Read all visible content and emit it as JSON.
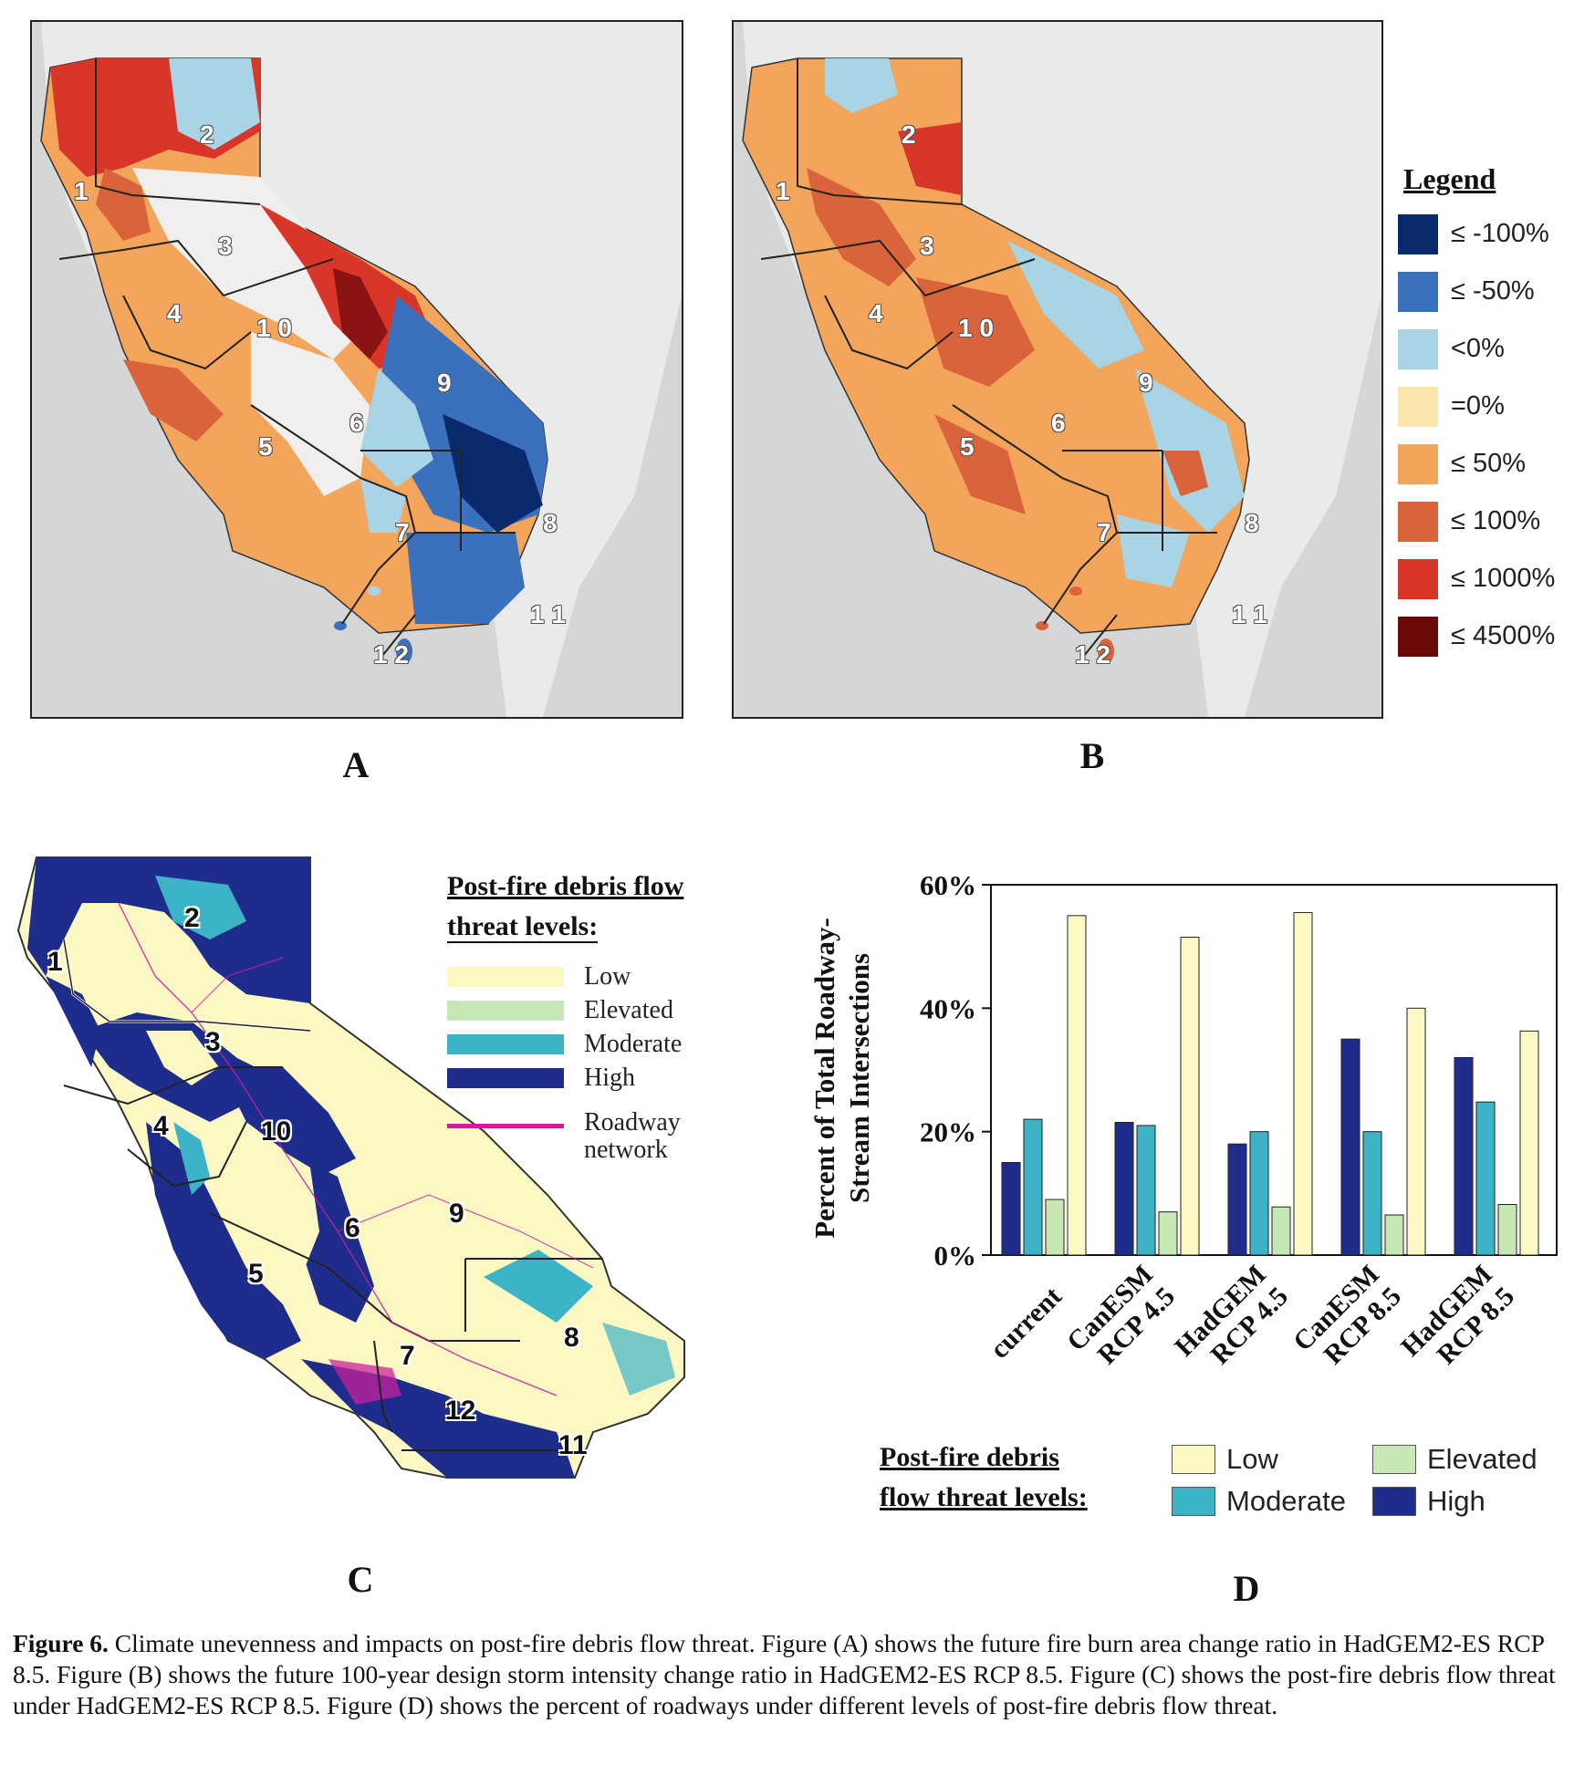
{
  "panel_a": {
    "label": "A",
    "regions": [
      "1",
      "2",
      "3",
      "4",
      "1 0",
      "5",
      "6",
      "7",
      "8",
      "9",
      "1 1",
      "1 2"
    ]
  },
  "panel_b": {
    "label": "B",
    "regions": [
      "1",
      "2",
      "3",
      "4",
      "1 0",
      "5",
      "6",
      "7",
      "8",
      "9",
      "1 1",
      "1 2"
    ]
  },
  "legend_ab": {
    "title": "Legend",
    "items": [
      {
        "label": "≤ -100%",
        "color": "#0b2a6e"
      },
      {
        "label": "≤ -50%",
        "color": "#3b70bd"
      },
      {
        "label": "<0%",
        "color": "#a9d4e6"
      },
      {
        "label": "=0%",
        "color": "#fbe6b0"
      },
      {
        "label": "≤ 50%",
        "color": "#f4a55c"
      },
      {
        "label": "≤ 100%",
        "color": "#d9633a"
      },
      {
        "label": "≤ 1000%",
        "color": "#d9362a"
      },
      {
        "label": "≤ 4500%",
        "color": "#6b0a0a"
      }
    ]
  },
  "panel_c": {
    "label": "C",
    "regions": [
      "1",
      "2",
      "3",
      "4",
      "10",
      "5",
      "6",
      "7",
      "8",
      "9",
      "11",
      "12"
    ],
    "legend": {
      "title_line1": "Post-fire debris flow",
      "title_line2": "threat levels:",
      "items": [
        {
          "label": "Low",
          "color": "#fbf8c4"
        },
        {
          "label": "Elevated",
          "color": "#c6e8b4"
        },
        {
          "label": "Moderate",
          "color": "#3cb3c7"
        },
        {
          "label": "High",
          "color": "#1e2d8c"
        }
      ],
      "road_line1": "Roadway",
      "road_line2": "network",
      "road_color": "#c8219c"
    }
  },
  "panel_d": {
    "label": "D",
    "legend": {
      "title_line1": "Post-fire debris",
      "title_line2": "flow threat levels:",
      "items": {
        "low": "Low",
        "elevated": "Elevated",
        "moderate": "Moderate",
        "high": "High"
      }
    }
  },
  "chart_data": {
    "type": "bar",
    "title": "",
    "xlabel": "",
    "ylabel_line1": "Percent of Total Roadway-",
    "ylabel_line2": "Stream Intersections",
    "categories": [
      [
        "current"
      ],
      [
        "CanESM",
        "RCP 4.5"
      ],
      [
        "HadGEM",
        "RCP 4.5"
      ],
      [
        "CanESM",
        "RCP 8.5"
      ],
      [
        "HadGEM",
        "RCP 8.5"
      ]
    ],
    "ylim": [
      0,
      60
    ],
    "yticks": [
      "0%",
      "20%",
      "40%",
      "60%"
    ],
    "grid": false,
    "series": [
      {
        "name": "High",
        "color": "#1e2d8c",
        "values": [
          15,
          21.5,
          18,
          35,
          32
        ]
      },
      {
        "name": "Moderate",
        "color": "#3cb3c7",
        "values": [
          22,
          21,
          20,
          20,
          24.8
        ]
      },
      {
        "name": "Elevated",
        "color": "#c6e8b4",
        "values": [
          9,
          7,
          7.8,
          6.5,
          8.2
        ]
      },
      {
        "name": "Low",
        "color": "#fbf8c4",
        "values": [
          55,
          51.5,
          55.5,
          40,
          36.3
        ]
      }
    ]
  },
  "caption": {
    "bold": "Figure 6.",
    "text": " Climate unevenness and impacts on post-fire debris flow threat. Figure (A) shows the future fire burn area change ratio in HadGEM2-ES RCP 8.5. Figure (B) shows the future 100-year design storm intensity change ratio in HadGEM2-ES RCP 8.5. Figure (C) shows the post-fire debris flow threat under HadGEM2-ES RCP 8.5. Figure (D) shows the percent of roadways under different levels of post-fire debris flow threat."
  }
}
